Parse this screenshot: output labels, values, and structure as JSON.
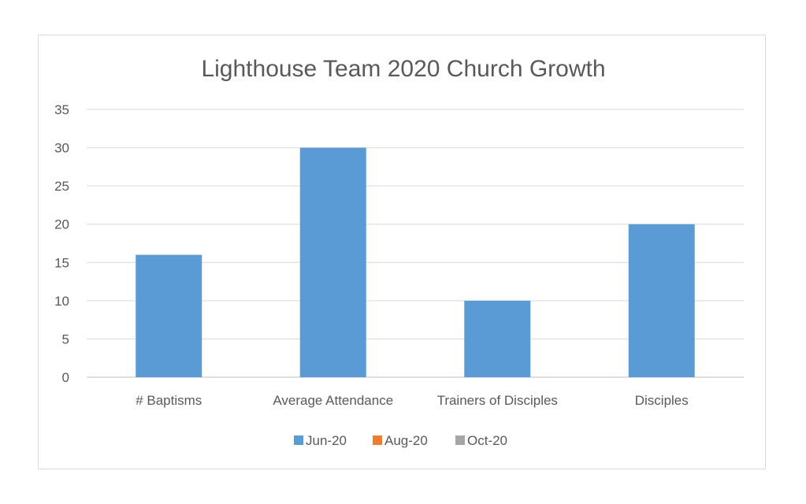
{
  "chart_data": {
    "type": "bar",
    "title": "Lighthouse Team 2020 Church Growth",
    "categories": [
      "# Baptisms",
      "Average Attendance",
      "Trainers of Disciples",
      "Disciples"
    ],
    "series": [
      {
        "name": "Jun-20",
        "color": "#5b9bd5",
        "values": [
          16,
          30,
          10,
          20
        ]
      },
      {
        "name": "Aug-20",
        "color": "#ed7d31",
        "values": [
          0,
          0,
          0,
          0
        ]
      },
      {
        "name": "Oct-20",
        "color": "#a5a5a5",
        "values": [
          0,
          0,
          0,
          0
        ]
      }
    ],
    "ylim": [
      0,
      35
    ],
    "yticks": [
      0,
      5,
      10,
      15,
      20,
      25,
      30,
      35
    ],
    "xlabel": "",
    "ylabel": "",
    "grid": true,
    "legend_position": "bottom"
  }
}
